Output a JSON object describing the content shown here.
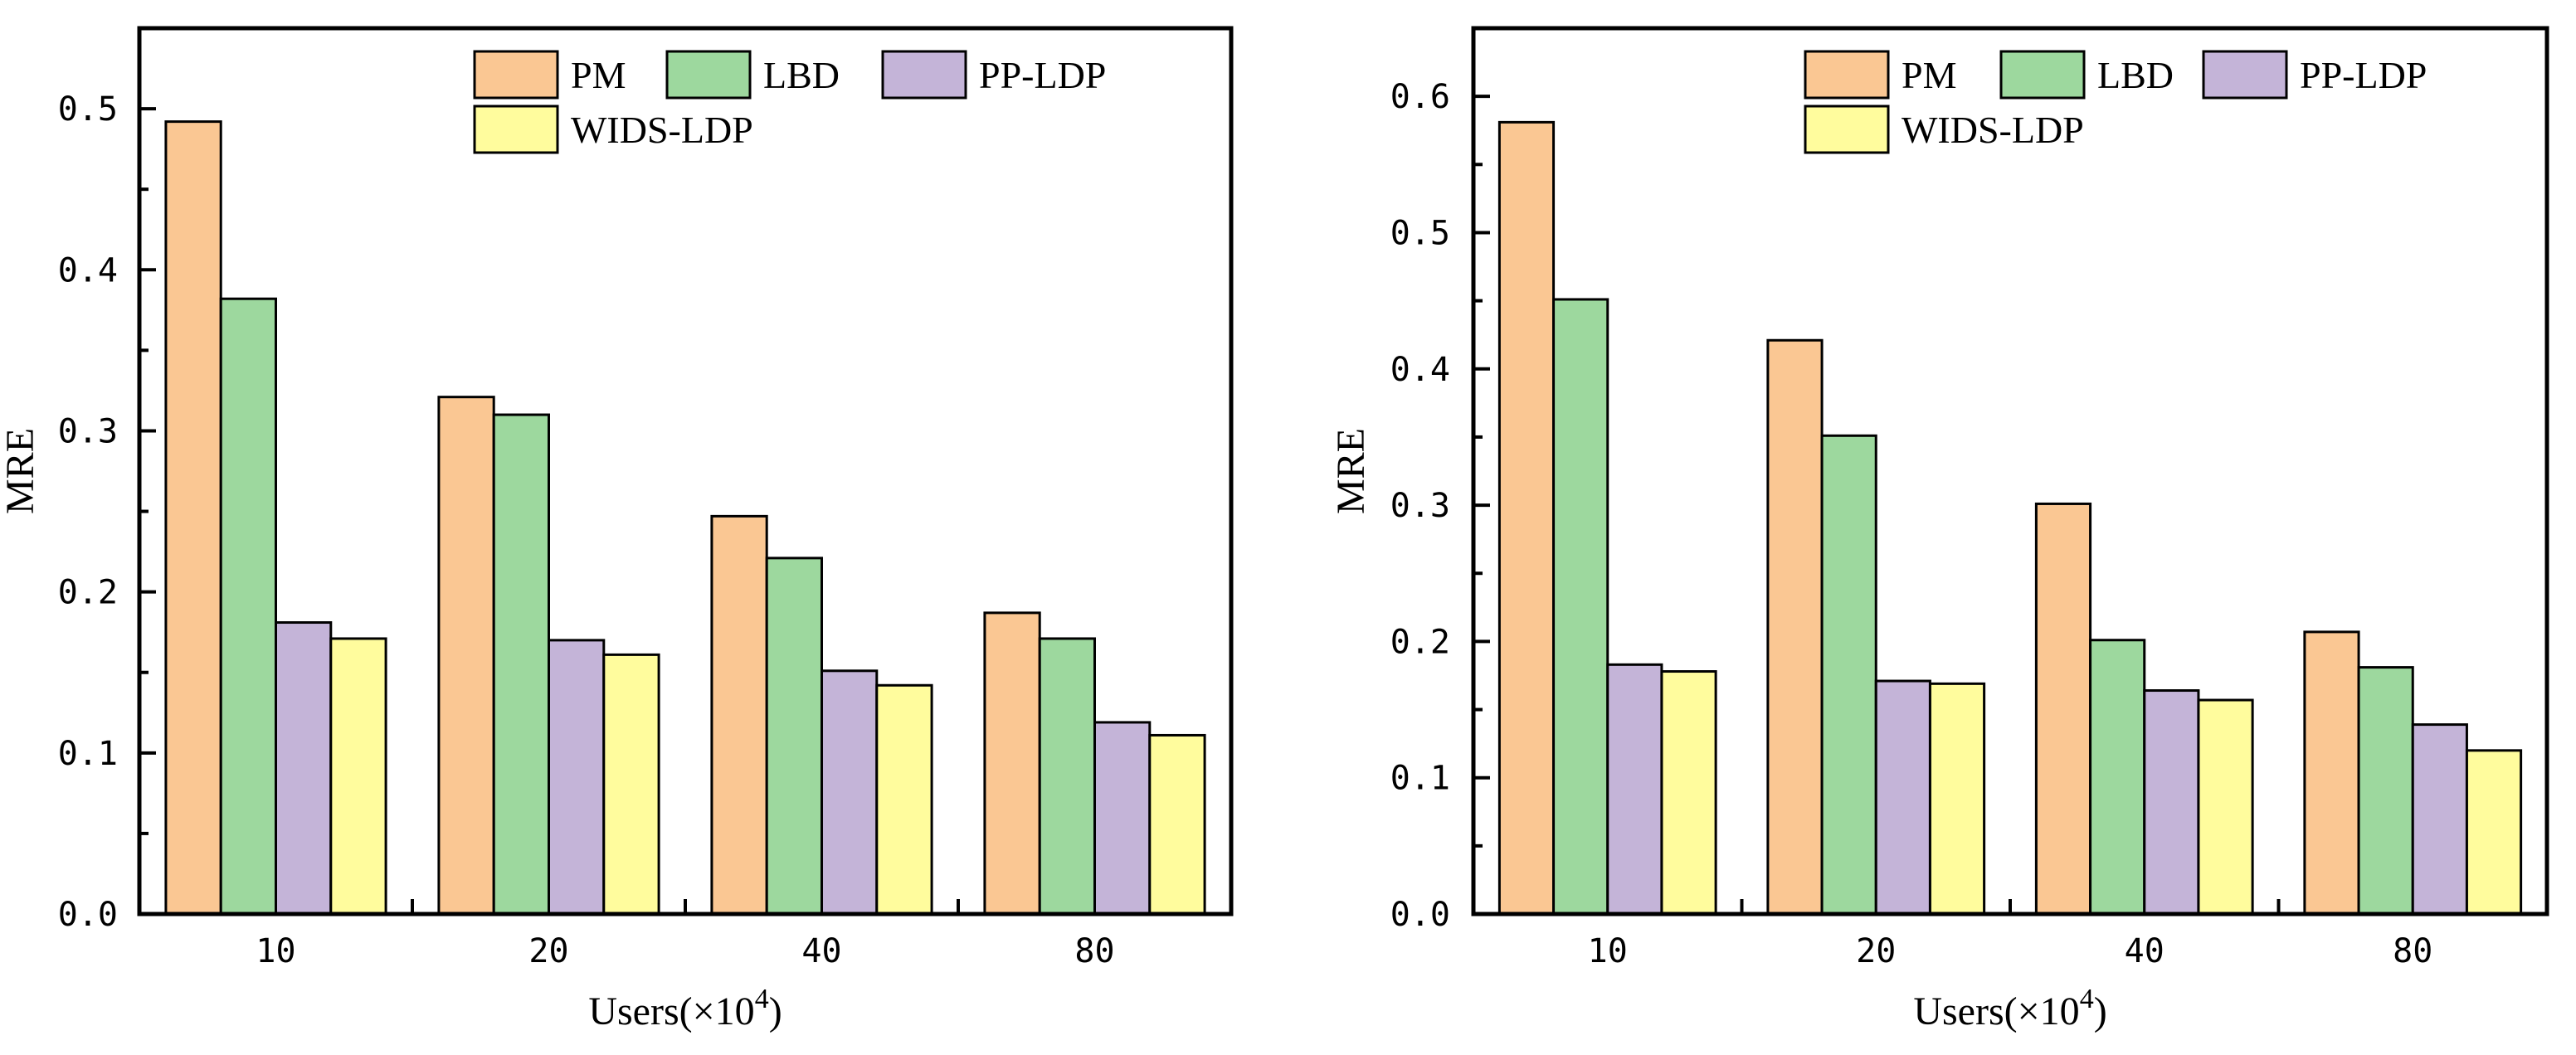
{
  "chart_data": [
    {
      "type": "bar",
      "title": "",
      "xlabel": "Users(×10",
      "xlabel_exponent": "4",
      "xlabel_close": ")",
      "ylabel": "MRE",
      "categories": [
        "10",
        "20",
        "40",
        "80"
      ],
      "ylim": [
        0,
        0.55
      ],
      "yticks": [
        0.0,
        0.1,
        0.2,
        0.3,
        0.4,
        0.5
      ],
      "ytick_labels": [
        "0.0",
        "0.1",
        "0.2",
        "0.3",
        "0.4",
        "0.5"
      ],
      "grid": false,
      "legend_position": "top-right",
      "series": [
        {
          "name": "PM",
          "values": [
            0.492,
            0.321,
            0.247,
            0.187
          ]
        },
        {
          "name": "LBD",
          "values": [
            0.382,
            0.31,
            0.221,
            0.171
          ]
        },
        {
          "name": "PP-LDP",
          "values": [
            0.181,
            0.17,
            0.151,
            0.119
          ]
        },
        {
          "name": "WIDS-LDP",
          "values": [
            0.171,
            0.161,
            0.142,
            0.111
          ]
        }
      ]
    },
    {
      "type": "bar",
      "title": "",
      "xlabel": "Users(×10",
      "xlabel_exponent": "4",
      "xlabel_close": ")",
      "ylabel": "MRE",
      "categories": [
        "10",
        "20",
        "40",
        "80"
      ],
      "ylim": [
        0,
        0.65
      ],
      "yticks": [
        0.0,
        0.1,
        0.2,
        0.3,
        0.4,
        0.5,
        0.6
      ],
      "ytick_labels": [
        "0.0",
        "0.1",
        "0.2",
        "0.3",
        "0.4",
        "0.5",
        "0.6"
      ],
      "grid": false,
      "legend_position": "top-right",
      "series": [
        {
          "name": "PM",
          "values": [
            0.581,
            0.421,
            0.301,
            0.207
          ]
        },
        {
          "name": "LBD",
          "values": [
            0.451,
            0.351,
            0.201,
            0.181
          ]
        },
        {
          "name": "PP-LDP",
          "values": [
            0.183,
            0.171,
            0.164,
            0.139
          ]
        },
        {
          "name": "WIDS-LDP",
          "values": [
            0.178,
            0.169,
            0.157,
            0.12
          ]
        }
      ]
    }
  ],
  "colors": {
    "PM": "#FAC793",
    "LBD": "#9DD89E",
    "PP-LDP": "#C4B4D8",
    "WIDS-LDP": "#FFFC9D"
  }
}
